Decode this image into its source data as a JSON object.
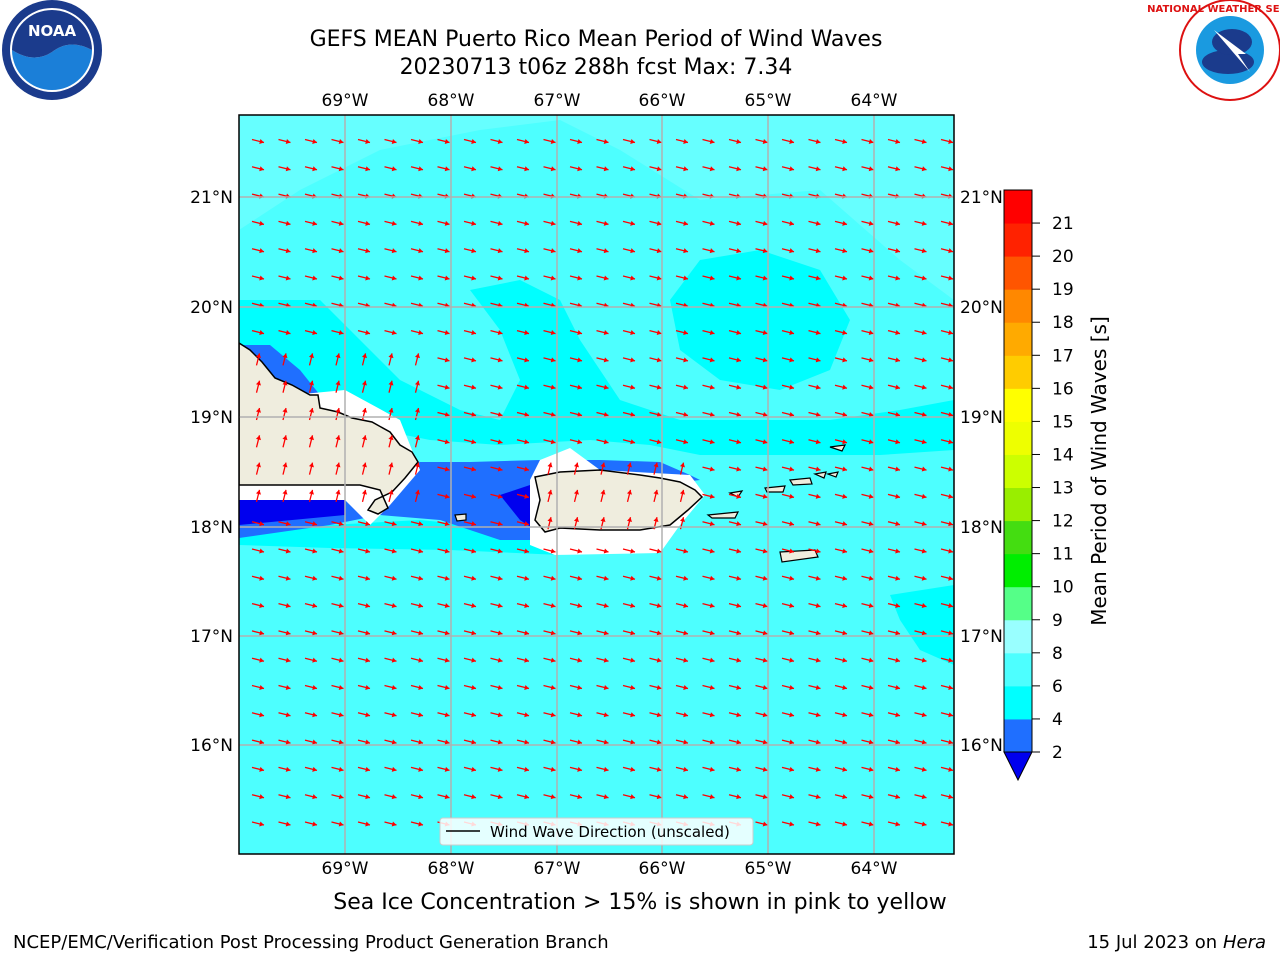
{
  "header": {
    "title_line1": "GEFS MEAN Puerto Rico Mean Period of Wind Waves",
    "title_line2": "20230713 t06z 288h fcst   Max: 7.34"
  },
  "logos": {
    "left": {
      "icon": "noaa-logo-icon",
      "text": "NOAA"
    },
    "right": {
      "icon": "national-weather-service-logo-icon",
      "text": "NATIONAL WEATHER SERVICE"
    }
  },
  "map": {
    "lon_labels": [
      "69°W",
      "68°W",
      "67°W",
      "66°W",
      "65°W",
      "64°W"
    ],
    "lat_labels": [
      "21°N",
      "20°N",
      "19°N",
      "18°N",
      "17°N",
      "16°N"
    ],
    "legend_label": "Wind Wave Direction (unscaled)",
    "arrow_color": "#ff0000",
    "land_color": "#efedde",
    "fill_colors": {
      "period_2_4": "#1f6fff",
      "period_4_6": "#00ffff",
      "period_6_8": "#4dffff",
      "below_2": "#0000ee"
    }
  },
  "colorbar": {
    "label": "Mean Period of Wind Waves [s]",
    "ticks": [
      "2",
      "4",
      "6",
      "8",
      "9",
      "10",
      "11",
      "12",
      "13",
      "14",
      "15",
      "16",
      "17",
      "18",
      "19",
      "20",
      "21"
    ],
    "colors": [
      "#1f6fff",
      "#00ffff",
      "#4dffff",
      "#99ffff",
      "#55ff88",
      "#00ee00",
      "#44dd11",
      "#99ee00",
      "#ccff00",
      "#eeff00",
      "#ffff00",
      "#ffcc00",
      "#ffaa00",
      "#ff8800",
      "#ff5500",
      "#ff2200",
      "#ff0000"
    ],
    "under_color": "#0000ee"
  },
  "note": "Sea Ice Concentration > 15% is shown in pink to yellow",
  "footer": {
    "left": "NCEP/EMC/Verification Post Processing Product Generation Branch",
    "right_prefix": "15 Jul 2023 on ",
    "right_host": "Hera"
  }
}
